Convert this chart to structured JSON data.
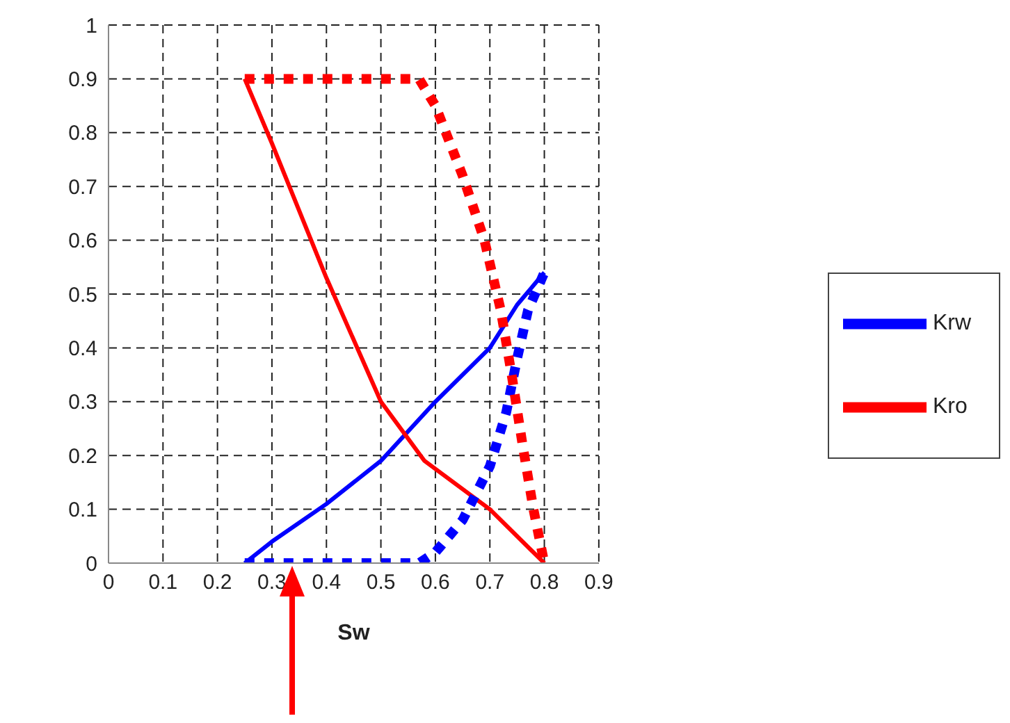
{
  "chart_data": {
    "type": "line",
    "xlabel": "Sw",
    "xlim": [
      0,
      0.9
    ],
    "xticks": [
      0,
      0.1,
      0.2,
      0.3,
      0.4,
      0.5,
      0.6,
      0.7,
      0.8,
      0.9
    ],
    "ylim": [
      0,
      1
    ],
    "yticks": [
      0,
      0.1,
      0.2,
      0.3,
      0.4,
      0.5,
      0.6,
      0.7,
      0.8,
      0.9,
      1
    ],
    "grid": true,
    "legend": "right",
    "marker": "none",
    "series": [
      {
        "name": "Krw",
        "color": "#0000ff",
        "line_style": "solid",
        "x": [
          0.25,
          0.3,
          0.4,
          0.5,
          0.6,
          0.7,
          0.75,
          0.8
        ],
        "values": [
          0,
          0.04,
          0.11,
          0.19,
          0.3,
          0.4,
          0.48,
          0.54
        ]
      },
      {
        "name": "Kro",
        "color": "#ff0000",
        "line_style": "solid",
        "x": [
          0.25,
          0.3,
          0.4,
          0.5,
          0.58,
          0.7,
          0.8
        ],
        "values": [
          0.9,
          0.78,
          0.53,
          0.3,
          0.19,
          0.1,
          0
        ]
      },
      {
        "color": "#0000ff",
        "line_style": "dotted",
        "x": [
          0.25,
          0.57,
          0.6,
          0.65,
          0.7,
          0.73,
          0.75,
          0.77,
          0.8
        ],
        "values": [
          0,
          0,
          0.02,
          0.08,
          0.18,
          0.28,
          0.38,
          0.47,
          0.54
        ]
      },
      {
        "color": "#ff0000",
        "line_style": "dotted",
        "x": [
          0.25,
          0.57,
          0.6,
          0.65,
          0.69,
          0.72,
          0.74,
          0.76,
          0.78,
          0.8
        ],
        "values": [
          0.9,
          0.9,
          0.85,
          0.72,
          0.6,
          0.47,
          0.35,
          0.22,
          0.1,
          0
        ]
      }
    ]
  }
}
